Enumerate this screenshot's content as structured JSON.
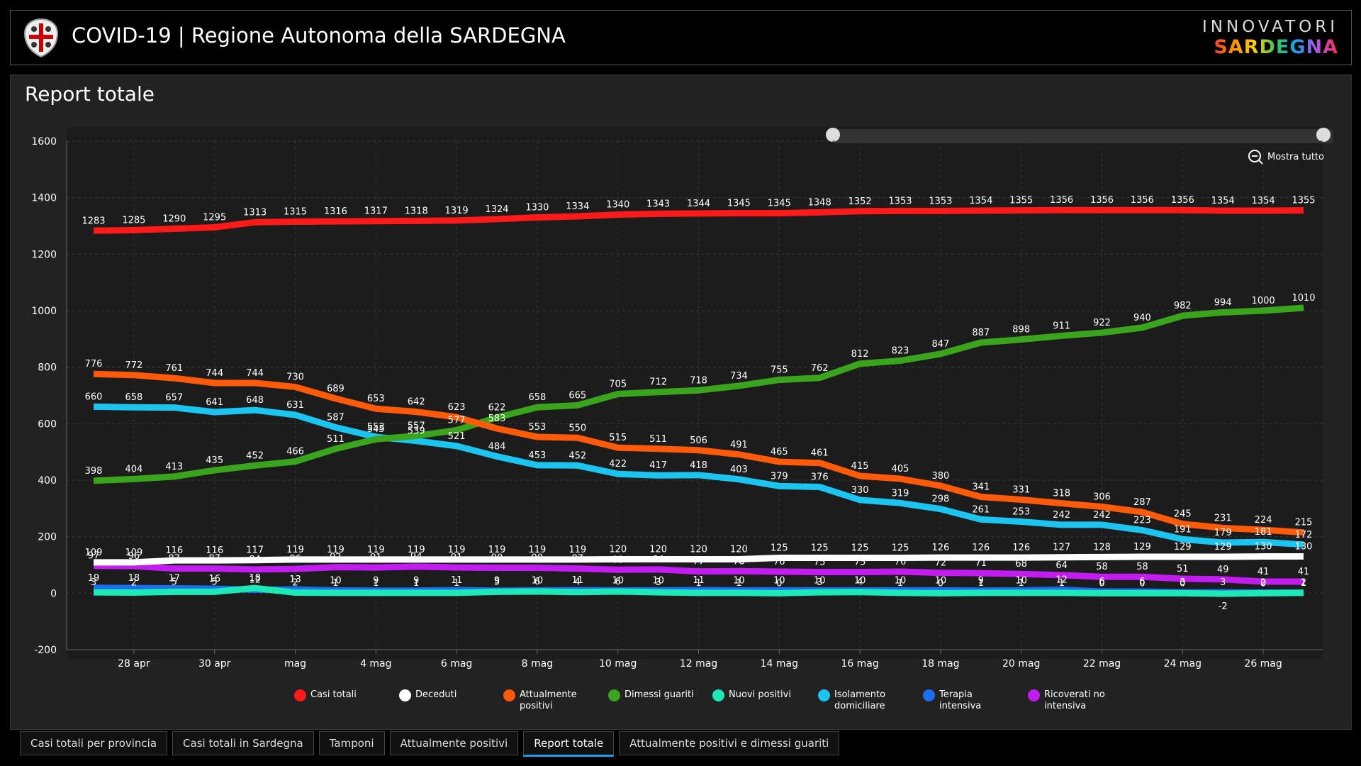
{
  "header": {
    "title": "COVID-19 | Regione Autonoma della SARDEGNA",
    "brand_top": "INNOVATORI",
    "brand_bottom": "SARDEGNA"
  },
  "panel_title": "Report totale",
  "zoom_button": "Mostra tutto",
  "tabs": [
    "Casi totali per provincia",
    "Casi totali in Sardegna",
    "Tamponi",
    "Attualmente positivi",
    "Report totale",
    "Attualmente positivi e dimessi guariti"
  ],
  "active_tab": 4,
  "chart_data": {
    "type": "line",
    "categories": [
      null,
      "28 apr",
      null,
      "30 apr",
      null,
      "mag",
      null,
      "4 mag",
      null,
      "6 mag",
      null,
      "8 mag",
      null,
      "10 mag",
      null,
      "12 mag",
      null,
      "14 mag",
      null,
      "16 mag",
      null,
      "18 mag",
      null,
      "20 mag",
      null,
      "22 mag",
      null,
      "24 mag",
      null,
      "26 mag",
      null
    ],
    "ylim": [
      -200,
      1600
    ],
    "yticks": [
      -200,
      0,
      200,
      400,
      600,
      800,
      1000,
      1200,
      1400,
      1600
    ],
    "grid": true,
    "series": [
      {
        "name": "Casi totali",
        "color": "#ff1a1a",
        "values": [
          1283,
          1285,
          1290,
          1295,
          1313,
          1315,
          1316,
          1317,
          1318,
          1319,
          1324,
          1330,
          1334,
          1340,
          1343,
          1344,
          1345,
          1345,
          1348,
          1352,
          1353,
          1353,
          1354,
          1355,
          1356,
          1356,
          1356,
          1356,
          1354,
          1354,
          1355
        ]
      },
      {
        "name": "Deceduti",
        "color": "#ffffff",
        "values": [
          109,
          109,
          116,
          116,
          117,
          119,
          119,
          119,
          119,
          119,
          119,
          119,
          119,
          120,
          120,
          120,
          120,
          125,
          125,
          125,
          125,
          126,
          126,
          126,
          127,
          128,
          129,
          129,
          129,
          130,
          130
        ]
      },
      {
        "name": "Attualmente positivi",
        "color": "#ff5a0a",
        "values": [
          776,
          772,
          761,
          744,
          744,
          730,
          689,
          653,
          642,
          623,
          583,
          553,
          550,
          515,
          511,
          506,
          491,
          465,
          461,
          415,
          405,
          380,
          341,
          331,
          318,
          306,
          287,
          245,
          231,
          224,
          215
        ]
      },
      {
        "name": "Dimessi guariti",
        "color": "#3aa51c",
        "values": [
          398,
          404,
          413,
          435,
          452,
          466,
          511,
          545,
          557,
          577,
          622,
          658,
          665,
          705,
          712,
          718,
          734,
          755,
          762,
          812,
          823,
          847,
          887,
          898,
          911,
          922,
          940,
          982,
          994,
          1000,
          1010
        ]
      },
      {
        "name": "Nuovi positivi",
        "color": "#1de9b6",
        "values": [
          3,
          2,
          5,
          5,
          18,
          2,
          1,
          1,
          1,
          1,
          5,
          6,
          4,
          6,
          3,
          1,
          1,
          0,
          3,
          4,
          1,
          0,
          1,
          1,
          1,
          0,
          0,
          0,
          -2,
          0,
          1
        ]
      },
      {
        "name": "Isolamento domiciliare",
        "color": "#1cc4f0",
        "values": [
          660,
          658,
          657,
          641,
          648,
          631,
          587,
          553,
          539,
          521,
          484,
          453,
          452,
          422,
          417,
          418,
          403,
          379,
          376,
          330,
          319,
          298,
          261,
          253,
          242,
          242,
          223,
          191,
          179,
          181,
          172
        ]
      },
      {
        "name": "Terapia intensiva",
        "color": "#1a6ff0",
        "values": [
          19,
          18,
          17,
          16,
          12,
          13,
          10,
          9,
          9,
          11,
          9,
          10,
          11,
          10,
          10,
          11,
          10,
          10,
          10,
          10,
          10,
          10,
          9,
          10,
          12,
          6,
          6,
          3,
          3,
          2,
          2
        ]
      },
      {
        "name": "Ricoverati no intensiva",
        "color": "#c21cf0",
        "values": [
          97,
          96,
          87,
          87,
          84,
          86,
          92,
          91,
          94,
          91,
          90,
          90,
          87,
          83,
          84,
          77,
          78,
          76,
          75,
          75,
          76,
          72,
          71,
          68,
          64,
          58,
          58,
          51,
          49,
          41,
          41
        ]
      }
    ]
  }
}
